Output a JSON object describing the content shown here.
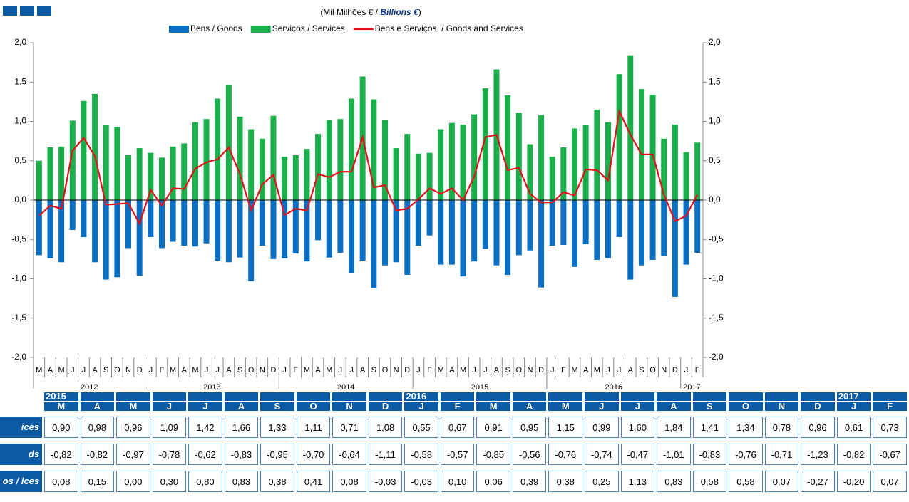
{
  "chart_data": {
    "type": "bar",
    "subtitle": [
      "(Mil Milhões € / ",
      "Billions €",
      ")"
    ],
    "categories": [
      "M",
      "A",
      "M",
      "J",
      "J",
      "A",
      "S",
      "O",
      "N",
      "D",
      "J",
      "F",
      "M",
      "A",
      "M",
      "J",
      "J",
      "A",
      "S",
      "O",
      "N",
      "D",
      "J",
      "F",
      "M",
      "A",
      "M",
      "J",
      "J",
      "A",
      "S",
      "O",
      "N",
      "D",
      "J",
      "F",
      "M",
      "A",
      "M",
      "J",
      "J",
      "A",
      "S",
      "O",
      "N",
      "D",
      "J",
      "F",
      "M",
      "A",
      "M",
      "J",
      "J",
      "A",
      "S",
      "O",
      "N",
      "D",
      "J",
      "F"
    ],
    "year_labels": [
      "2012",
      "2013",
      "2014",
      "2015",
      "2016",
      "2017"
    ],
    "series": [
      {
        "name": "Bens / Goods",
        "color": "#0a6fc2",
        "values": [
          -0.7,
          -0.74,
          -0.79,
          -0.38,
          -0.47,
          -0.79,
          -1.01,
          -0.98,
          -0.61,
          -0.96,
          -0.47,
          -0.61,
          -0.53,
          -0.58,
          -0.59,
          -0.55,
          -0.77,
          -0.79,
          -0.73,
          -1.03,
          -0.58,
          -0.75,
          -0.74,
          -0.68,
          -0.78,
          -0.51,
          -0.73,
          -0.67,
          -0.93,
          -0.77,
          -1.12,
          -0.83,
          -0.79,
          -0.95,
          -0.58,
          -0.45,
          -0.82,
          -0.82,
          -0.97,
          -0.78,
          -0.62,
          -0.83,
          -0.95,
          -0.7,
          -0.64,
          -1.11,
          -0.58,
          -0.57,
          -0.85,
          -0.56,
          -0.76,
          -0.74,
          -0.47,
          -1.01,
          -0.83,
          -0.76,
          -0.71,
          -1.23,
          -0.82,
          -0.67
        ]
      },
      {
        "name": "Serviços / Services",
        "color": "#1aaf4b",
        "values": [
          0.5,
          0.67,
          0.68,
          1.01,
          1.26,
          1.35,
          0.95,
          0.93,
          0.57,
          0.66,
          0.6,
          0.54,
          0.68,
          0.72,
          0.99,
          1.03,
          1.29,
          1.46,
          1.06,
          0.9,
          0.78,
          1.07,
          0.55,
          0.57,
          0.65,
          0.84,
          1.02,
          1.03,
          1.29,
          1.57,
          1.28,
          1.02,
          0.66,
          0.84,
          0.59,
          0.6,
          0.9,
          0.98,
          0.96,
          1.09,
          1.42,
          1.66,
          1.33,
          1.11,
          0.71,
          1.08,
          0.55,
          0.67,
          0.91,
          0.95,
          1.15,
          0.99,
          1.6,
          1.84,
          1.41,
          1.34,
          0.78,
          0.96,
          0.61,
          0.73
        ]
      },
      {
        "name": "Bens e Serviços  / Goods and Services",
        "color": "#e3101a",
        "type": "line",
        "values": [
          -0.2,
          -0.07,
          -0.11,
          0.63,
          0.79,
          0.56,
          -0.06,
          -0.05,
          -0.04,
          -0.3,
          0.13,
          -0.07,
          0.15,
          0.14,
          0.4,
          0.48,
          0.52,
          0.67,
          0.33,
          -0.13,
          0.2,
          0.32,
          -0.19,
          -0.11,
          -0.13,
          0.33,
          0.29,
          0.36,
          0.36,
          0.8,
          0.16,
          0.19,
          -0.13,
          -0.11,
          0.01,
          0.15,
          0.08,
          0.15,
          0.0,
          0.3,
          0.8,
          0.83,
          0.38,
          0.41,
          0.08,
          -0.03,
          -0.03,
          0.1,
          0.06,
          0.39,
          0.38,
          0.25,
          1.13,
          0.83,
          0.58,
          0.58,
          0.07,
          -0.27,
          -0.2,
          0.07
        ]
      }
    ],
    "ylim": [
      -2,
      2
    ],
    "yticks": [
      {
        "value": -2,
        "label": "-2,0"
      },
      {
        "value": -1.5,
        "label": "-1,5"
      },
      {
        "value": -1,
        "label": "-1,0"
      },
      {
        "value": -0.5,
        "label": "-0,5"
      },
      {
        "value": 0,
        "label": "0,0"
      },
      {
        "value": 0.5,
        "label": "0,5"
      },
      {
        "value": 1,
        "label": "1,0"
      },
      {
        "value": 1.5,
        "label": "1,5"
      },
      {
        "value": 2,
        "label": "2,0"
      }
    ],
    "y2lim": [
      -2,
      2
    ],
    "y2ticks": [
      {
        "value": -2,
        "label": "-2,0"
      },
      {
        "value": -1.5,
        "label": "-1,5"
      },
      {
        "value": -1,
        "label": "-1,0"
      },
      {
        "value": -0.5,
        "label": "-0,5"
      },
      {
        "value": 0,
        "label": "0,0"
      },
      {
        "value": 0.5,
        "label": "0,5"
      },
      {
        "value": 1,
        "label": "1,0"
      },
      {
        "value": 1.5,
        "label": "1,5"
      },
      {
        "value": 2,
        "label": "2,0"
      }
    ],
    "legend": "top"
  },
  "table": {
    "years": [
      "2015",
      "2016",
      "2017"
    ],
    "months": [
      "M",
      "A",
      "M",
      "J",
      "J",
      "A",
      "S",
      "O",
      "N",
      "D",
      "J",
      "F",
      "M",
      "A",
      "M",
      "J",
      "J",
      "A",
      "S",
      "O",
      "N",
      "D",
      "J",
      "F"
    ],
    "rows": [
      {
        "label": "ices",
        "values": [
          "0,90",
          "0,98",
          "0,96",
          "1,09",
          "1,42",
          "1,66",
          "1,33",
          "1,11",
          "0,71",
          "1,08",
          "0,55",
          "0,67",
          "0,91",
          "0,95",
          "1,15",
          "0,99",
          "1,60",
          "1,84",
          "1,41",
          "1,34",
          "0,78",
          "0,96",
          "0,61",
          "0,73"
        ]
      },
      {
        "label": "ds",
        "values": [
          "-0,82",
          "-0,82",
          "-0,97",
          "-0,78",
          "-0,62",
          "-0,83",
          "-0,95",
          "-0,70",
          "-0,64",
          "-1,11",
          "-0,58",
          "-0,57",
          "-0,85",
          "-0,56",
          "-0,76",
          "-0,74",
          "-0,47",
          "-1,01",
          "-0,83",
          "-0,76",
          "-0,71",
          "-1,23",
          "-0,82",
          "-0,67"
        ]
      },
      {
        "label": "os / ices",
        "values": [
          "0,08",
          "0,15",
          "0,00",
          "0,30",
          "0,80",
          "0,83",
          "0,38",
          "0,41",
          "0,08",
          "-0,03",
          "-0,03",
          "0,10",
          "0,06",
          "0,39",
          "0,38",
          "0,25",
          "1,13",
          "0,83",
          "0,58",
          "0,58",
          "0,07",
          "-0,27",
          "-0,20",
          "0,07"
        ]
      }
    ]
  }
}
